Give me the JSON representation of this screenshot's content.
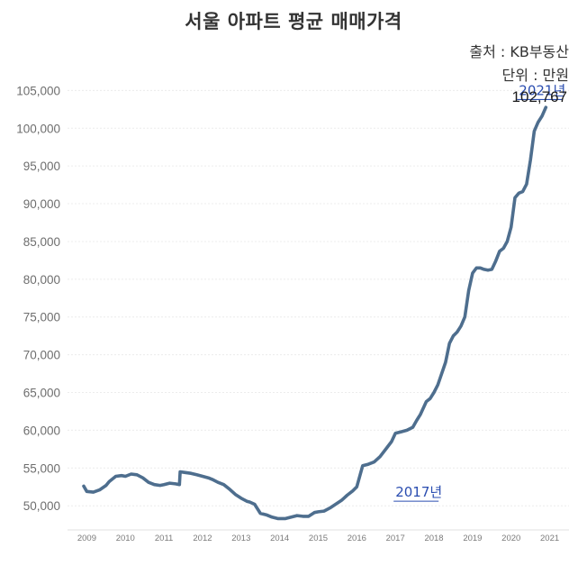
{
  "chart_data": {
    "type": "line",
    "title": "서울 아파트 평균 매매가격",
    "source": "출처 : KB부동산",
    "unit": "단위 : 만원",
    "xlabel": "",
    "ylabel": "",
    "xlim": [
      2008.5,
      2021.5
    ],
    "ylim": [
      46800,
      106000
    ],
    "yticks": [
      {
        "value": 50000,
        "label": "50,000"
      },
      {
        "value": 55000,
        "label": "55,000"
      },
      {
        "value": 60000,
        "label": "60,000"
      },
      {
        "value": 65000,
        "label": "65,000"
      },
      {
        "value": 70000,
        "label": "70,000"
      },
      {
        "value": 75000,
        "label": "75,000"
      },
      {
        "value": 80000,
        "label": "80,000"
      },
      {
        "value": 85000,
        "label": "85,000"
      },
      {
        "value": 90000,
        "label": "90,000"
      },
      {
        "value": 95000,
        "label": "95,000"
      },
      {
        "value": 100000,
        "label": "100,000"
      },
      {
        "value": 105000,
        "label": "105,000"
      }
    ],
    "xticks": [
      {
        "value": 2009,
        "label": "2009"
      },
      {
        "value": 2010,
        "label": "2010"
      },
      {
        "value": 2011,
        "label": "2011"
      },
      {
        "value": 2012,
        "label": "2012"
      },
      {
        "value": 2013,
        "label": "2013"
      },
      {
        "value": 2014,
        "label": "2014"
      },
      {
        "value": 2015,
        "label": "2015"
      },
      {
        "value": 2016,
        "label": "2016"
      },
      {
        "value": 2017,
        "label": "2017"
      },
      {
        "value": 2018,
        "label": "2018"
      },
      {
        "value": 2019,
        "label": "2019"
      },
      {
        "value": 2020,
        "label": "2020"
      },
      {
        "value": 2021,
        "label": "2021"
      }
    ],
    "series": [
      {
        "name": "서울 아파트 평균 매매가격",
        "color": "#4e6e8e",
        "x": [
          2008.92,
          2009.0,
          2009.17,
          2009.33,
          2009.5,
          2009.58,
          2009.75,
          2009.9,
          2010.0,
          2010.15,
          2010.3,
          2010.45,
          2010.6,
          2010.75,
          2010.9,
          2011.0,
          2011.15,
          2011.3,
          2011.4,
          2011.42,
          2011.55,
          2011.7,
          2011.85,
          2012.0,
          2012.15,
          2012.25,
          2012.4,
          2012.55,
          2012.7,
          2012.85,
          2013.0,
          2013.15,
          2013.22,
          2013.35,
          2013.5,
          2013.65,
          2013.8,
          2013.95,
          2014.15,
          2014.3,
          2014.45,
          2014.6,
          2014.75,
          2014.9,
          2015.0,
          2015.15,
          2015.3,
          2015.45,
          2015.6,
          2015.75,
          2015.9,
          2016.0,
          2016.15,
          2016.3,
          2016.45,
          2016.6,
          2016.75,
          2016.9,
          2017.0,
          2017.15,
          2017.3,
          2017.45,
          2017.55,
          2017.65,
          2017.8,
          2017.9,
          2018.0,
          2018.1,
          2018.2,
          2018.3,
          2018.4,
          2018.5,
          2018.6,
          2018.7,
          2018.8,
          2018.9,
          2019.0,
          2019.1,
          2019.2,
          2019.3,
          2019.4,
          2019.5,
          2019.6,
          2019.7,
          2019.8,
          2019.9,
          2020.0,
          2020.1,
          2020.2,
          2020.3,
          2020.4,
          2020.5,
          2020.6,
          2020.7,
          2020.8,
          2020.9
        ],
        "values": [
          52600,
          51900,
          51800,
          52100,
          52700,
          53200,
          53900,
          54000,
          53900,
          54200,
          54100,
          53700,
          53100,
          52800,
          52700,
          52800,
          53000,
          52900,
          52800,
          54500,
          54400,
          54300,
          54100,
          53900,
          53700,
          53500,
          53100,
          52800,
          52200,
          51500,
          51000,
          50600,
          50500,
          50200,
          49000,
          48800,
          48500,
          48300,
          48300,
          48500,
          48700,
          48600,
          48600,
          49100,
          49200,
          49300,
          49700,
          50200,
          50700,
          51400,
          52000,
          52500,
          55300,
          55500,
          55800,
          56500,
          57500,
          58500,
          59600,
          59800,
          60000,
          60400,
          61300,
          62100,
          63800,
          64200,
          65000,
          66000,
          67500,
          69000,
          71500,
          72500,
          73000,
          73800,
          75000,
          78500,
          80800,
          81500,
          81500,
          81300,
          81200,
          81300,
          82400,
          83700,
          84100,
          85000,
          86900,
          90800,
          91400,
          91600,
          92600,
          95800,
          99600,
          100800,
          101600,
          102767
        ]
      }
    ],
    "annotations": [
      {
        "label": "2017년",
        "x": 2017.0,
        "y": 51200
      },
      {
        "label": "2021년",
        "x": 2020.2,
        "y": 104400
      }
    ],
    "last_value_label": "102,767",
    "grid": true,
    "legend": "none"
  }
}
